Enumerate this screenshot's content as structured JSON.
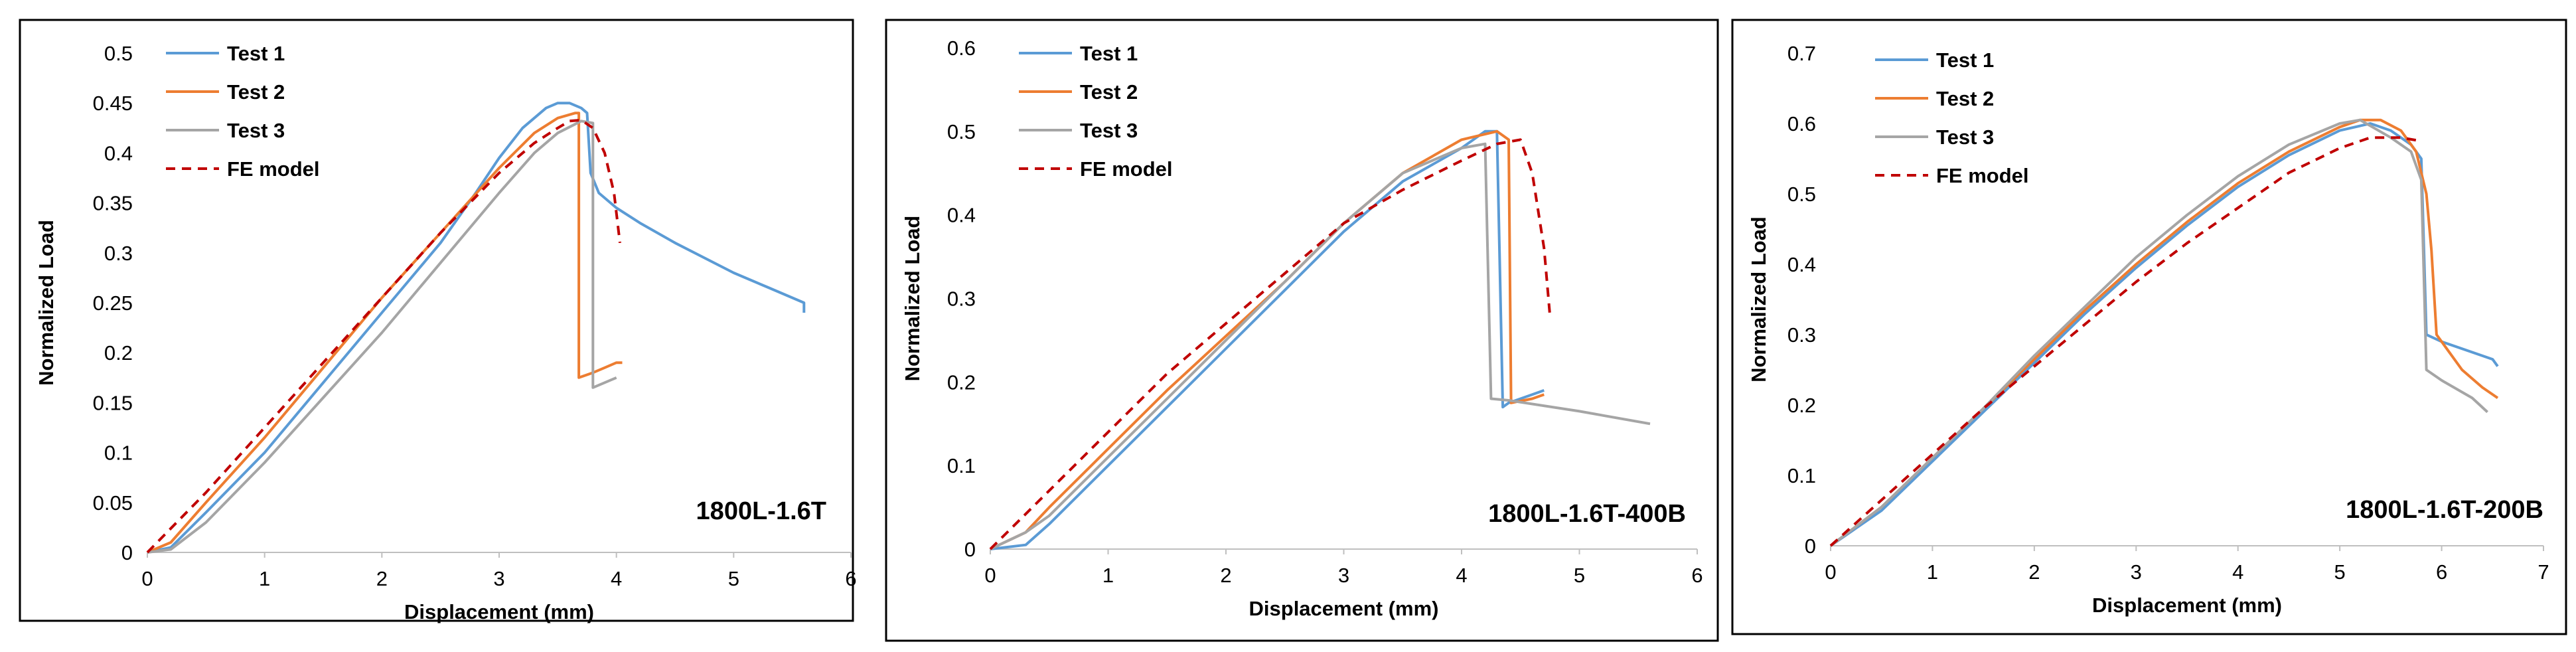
{
  "chart_data": [
    {
      "type": "line",
      "annotation": "1800L-1.6T",
      "xlabel": "Displacement (mm)",
      "ylabel": "Normalized Load",
      "xlim": [
        0,
        6
      ],
      "ylim": [
        0,
        0.5
      ],
      "xticks": [
        "0",
        "1",
        "2",
        "3",
        "4",
        "5",
        "6"
      ],
      "yticks": [
        "0",
        "0.05",
        "0.1",
        "0.15",
        "0.2",
        "0.25",
        "0.3",
        "0.35",
        "0.4",
        "0.45",
        "0.5"
      ],
      "series": [
        {
          "name": "Test 1",
          "color": "#5B9BD5",
          "dash": "",
          "points": [
            [
              0,
              0
            ],
            [
              0.2,
              0.005
            ],
            [
              0.5,
              0.04
            ],
            [
              1,
              0.1
            ],
            [
              1.5,
              0.17
            ],
            [
              2,
              0.24
            ],
            [
              2.5,
              0.31
            ],
            [
              2.8,
              0.36
            ],
            [
              3,
              0.395
            ],
            [
              3.2,
              0.425
            ],
            [
              3.4,
              0.445
            ],
            [
              3.5,
              0.45
            ],
            [
              3.6,
              0.45
            ],
            [
              3.7,
              0.445
            ],
            [
              3.75,
              0.44
            ],
            [
              3.78,
              0.38
            ],
            [
              3.85,
              0.36
            ],
            [
              4,
              0.345
            ],
            [
              4.2,
              0.33
            ],
            [
              4.5,
              0.31
            ],
            [
              5,
              0.28
            ],
            [
              5.3,
              0.265
            ],
            [
              5.6,
              0.25
            ],
            [
              5.6,
              0.24
            ]
          ]
        },
        {
          "name": "Test 2",
          "color": "#ED7D31",
          "dash": "",
          "points": [
            [
              0,
              0
            ],
            [
              0.2,
              0.01
            ],
            [
              0.5,
              0.05
            ],
            [
              1,
              0.115
            ],
            [
              1.5,
              0.185
            ],
            [
              2,
              0.255
            ],
            [
              2.5,
              0.32
            ],
            [
              3,
              0.385
            ],
            [
              3.3,
              0.42
            ],
            [
              3.5,
              0.435
            ],
            [
              3.65,
              0.44
            ],
            [
              3.68,
              0.44
            ],
            [
              3.68,
              0.175
            ],
            [
              3.8,
              0.18
            ],
            [
              3.9,
              0.185
            ],
            [
              4,
              0.19
            ],
            [
              4.05,
              0.19
            ]
          ]
        },
        {
          "name": "Test 3",
          "color": "#A5A5A5",
          "dash": "",
          "points": [
            [
              0,
              0
            ],
            [
              0.2,
              0.003
            ],
            [
              0.5,
              0.03
            ],
            [
              1,
              0.09
            ],
            [
              1.5,
              0.155
            ],
            [
              2,
              0.22
            ],
            [
              2.5,
              0.29
            ],
            [
              3,
              0.36
            ],
            [
              3.3,
              0.4
            ],
            [
              3.5,
              0.42
            ],
            [
              3.7,
              0.432
            ],
            [
              3.8,
              0.43
            ],
            [
              3.8,
              0.165
            ],
            [
              3.9,
              0.17
            ],
            [
              4,
              0.175
            ]
          ]
        },
        {
          "name": "FE model",
          "color": "#C00000",
          "dash": "14,10",
          "points": [
            [
              0,
              0
            ],
            [
              0.5,
              0.06
            ],
            [
              1,
              0.125
            ],
            [
              1.5,
              0.19
            ],
            [
              2,
              0.255
            ],
            [
              2.5,
              0.32
            ],
            [
              3,
              0.38
            ],
            [
              3.3,
              0.41
            ],
            [
              3.5,
              0.425
            ],
            [
              3.6,
              0.432
            ],
            [
              3.7,
              0.433
            ],
            [
              3.8,
              0.425
            ],
            [
              3.9,
              0.4
            ],
            [
              3.98,
              0.36
            ],
            [
              4.03,
              0.31
            ]
          ]
        }
      ]
    },
    {
      "type": "line",
      "annotation": "1800L-1.6T-400B",
      "xlabel": "Displacement (mm)",
      "ylabel": "Normalized Load",
      "xlim": [
        0,
        6
      ],
      "ylim": [
        0,
        0.6
      ],
      "xticks": [
        "0",
        "1",
        "2",
        "3",
        "4",
        "5",
        "6"
      ],
      "yticks": [
        "0",
        "0.1",
        "0.2",
        "0.3",
        "0.4",
        "0.5",
        "0.6"
      ],
      "series": [
        {
          "name": "Test 1",
          "color": "#5B9BD5",
          "dash": "",
          "points": [
            [
              0,
              0
            ],
            [
              0.3,
              0.005
            ],
            [
              0.5,
              0.03
            ],
            [
              1,
              0.1
            ],
            [
              1.5,
              0.17
            ],
            [
              2,
              0.24
            ],
            [
              2.5,
              0.31
            ],
            [
              3,
              0.38
            ],
            [
              3.5,
              0.44
            ],
            [
              4,
              0.48
            ],
            [
              4.2,
              0.5
            ],
            [
              4.3,
              0.5
            ],
            [
              4.35,
              0.17
            ],
            [
              4.4,
              0.175
            ],
            [
              4.6,
              0.185
            ],
            [
              4.7,
              0.19
            ]
          ]
        },
        {
          "name": "Test 2",
          "color": "#ED7D31",
          "dash": "",
          "points": [
            [
              0,
              0
            ],
            [
              0.3,
              0.02
            ],
            [
              0.5,
              0.05
            ],
            [
              1,
              0.12
            ],
            [
              1.5,
              0.19
            ],
            [
              2,
              0.255
            ],
            [
              2.5,
              0.32
            ],
            [
              3,
              0.39
            ],
            [
              3.5,
              0.45
            ],
            [
              4,
              0.49
            ],
            [
              4.3,
              0.5
            ],
            [
              4.4,
              0.49
            ],
            [
              4.42,
              0.175
            ],
            [
              4.6,
              0.18
            ],
            [
              4.7,
              0.185
            ]
          ]
        },
        {
          "name": "Test 3",
          "color": "#A5A5A5",
          "dash": "",
          "points": [
            [
              0,
              0
            ],
            [
              0.3,
              0.02
            ],
            [
              0.5,
              0.04
            ],
            [
              1,
              0.11
            ],
            [
              1.5,
              0.18
            ],
            [
              2,
              0.25
            ],
            [
              2.5,
              0.32
            ],
            [
              3,
              0.39
            ],
            [
              3.5,
              0.45
            ],
            [
              4,
              0.48
            ],
            [
              4.2,
              0.485
            ],
            [
              4.25,
              0.18
            ],
            [
              4.4,
              0.178
            ],
            [
              5,
              0.165
            ],
            [
              5.6,
              0.15
            ]
          ]
        },
        {
          "name": "FE model",
          "color": "#C00000",
          "dash": "14,10",
          "points": [
            [
              0,
              0
            ],
            [
              0.5,
              0.07
            ],
            [
              1,
              0.14
            ],
            [
              1.5,
              0.21
            ],
            [
              2,
              0.27
            ],
            [
              2.5,
              0.33
            ],
            [
              3,
              0.39
            ],
            [
              3.5,
              0.43
            ],
            [
              4,
              0.465
            ],
            [
              4.3,
              0.485
            ],
            [
              4.5,
              0.49
            ],
            [
              4.6,
              0.45
            ],
            [
              4.7,
              0.36
            ],
            [
              4.75,
              0.28
            ]
          ]
        }
      ]
    },
    {
      "type": "line",
      "annotation": "1800L-1.6T-200B",
      "xlabel": "Displacement (mm)",
      "ylabel": "Normalized Load",
      "xlim": [
        0,
        7
      ],
      "ylim": [
        0,
        0.7
      ],
      "xticks": [
        "0",
        "1",
        "2",
        "3",
        "4",
        "5",
        "6",
        "7"
      ],
      "yticks": [
        "0",
        "0.1",
        "0.2",
        "0.3",
        "0.4",
        "0.5",
        "0.6",
        "0.7"
      ],
      "series": [
        {
          "name": "Test 1",
          "color": "#5B9BD5",
          "dash": "",
          "points": [
            [
              0,
              0
            ],
            [
              0.5,
              0.05
            ],
            [
              1,
              0.12
            ],
            [
              1.5,
              0.19
            ],
            [
              2,
              0.26
            ],
            [
              2.5,
              0.33
            ],
            [
              3,
              0.395
            ],
            [
              3.5,
              0.455
            ],
            [
              4,
              0.51
            ],
            [
              4.5,
              0.555
            ],
            [
              5,
              0.59
            ],
            [
              5.3,
              0.6
            ],
            [
              5.5,
              0.59
            ],
            [
              5.7,
              0.57
            ],
            [
              5.8,
              0.55
            ],
            [
              5.85,
              0.3
            ],
            [
              6,
              0.29
            ],
            [
              6.3,
              0.275
            ],
            [
              6.5,
              0.265
            ],
            [
              6.55,
              0.255
            ]
          ]
        },
        {
          "name": "Test 2",
          "color": "#ED7D31",
          "dash": "",
          "points": [
            [
              0,
              0
            ],
            [
              0.5,
              0.055
            ],
            [
              1,
              0.125
            ],
            [
              1.5,
              0.195
            ],
            [
              2,
              0.265
            ],
            [
              2.5,
              0.335
            ],
            [
              3,
              0.4
            ],
            [
              3.5,
              0.46
            ],
            [
              4,
              0.515
            ],
            [
              4.5,
              0.56
            ],
            [
              5,
              0.595
            ],
            [
              5.2,
              0.605
            ],
            [
              5.4,
              0.605
            ],
            [
              5.6,
              0.59
            ],
            [
              5.75,
              0.56
            ],
            [
              5.85,
              0.5
            ],
            [
              5.9,
              0.42
            ],
            [
              5.95,
              0.3
            ],
            [
              6.2,
              0.25
            ],
            [
              6.4,
              0.225
            ],
            [
              6.55,
              0.21
            ]
          ]
        },
        {
          "name": "Test 3",
          "color": "#A5A5A5",
          "dash": "",
          "points": [
            [
              0,
              0
            ],
            [
              0.5,
              0.055
            ],
            [
              1,
              0.125
            ],
            [
              1.5,
              0.195
            ],
            [
              2,
              0.27
            ],
            [
              2.5,
              0.34
            ],
            [
              3,
              0.41
            ],
            [
              3.5,
              0.47
            ],
            [
              4,
              0.525
            ],
            [
              4.5,
              0.57
            ],
            [
              5,
              0.6
            ],
            [
              5.2,
              0.605
            ],
            [
              5.5,
              0.58
            ],
            [
              5.7,
              0.56
            ],
            [
              5.8,
              0.52
            ],
            [
              5.85,
              0.25
            ],
            [
              6,
              0.235
            ],
            [
              6.3,
              0.21
            ],
            [
              6.45,
              0.19
            ]
          ]
        },
        {
          "name": "FE model",
          "color": "#C00000",
          "dash": "14,10",
          "points": [
            [
              0,
              0
            ],
            [
              0.5,
              0.065
            ],
            [
              1,
              0.13
            ],
            [
              1.5,
              0.195
            ],
            [
              2,
              0.255
            ],
            [
              2.5,
              0.315
            ],
            [
              3,
              0.375
            ],
            [
              3.5,
              0.43
            ],
            [
              4,
              0.48
            ],
            [
              4.5,
              0.53
            ],
            [
              5,
              0.565
            ],
            [
              5.3,
              0.58
            ],
            [
              5.6,
              0.58
            ],
            [
              5.8,
              0.575
            ]
          ]
        }
      ]
    }
  ]
}
